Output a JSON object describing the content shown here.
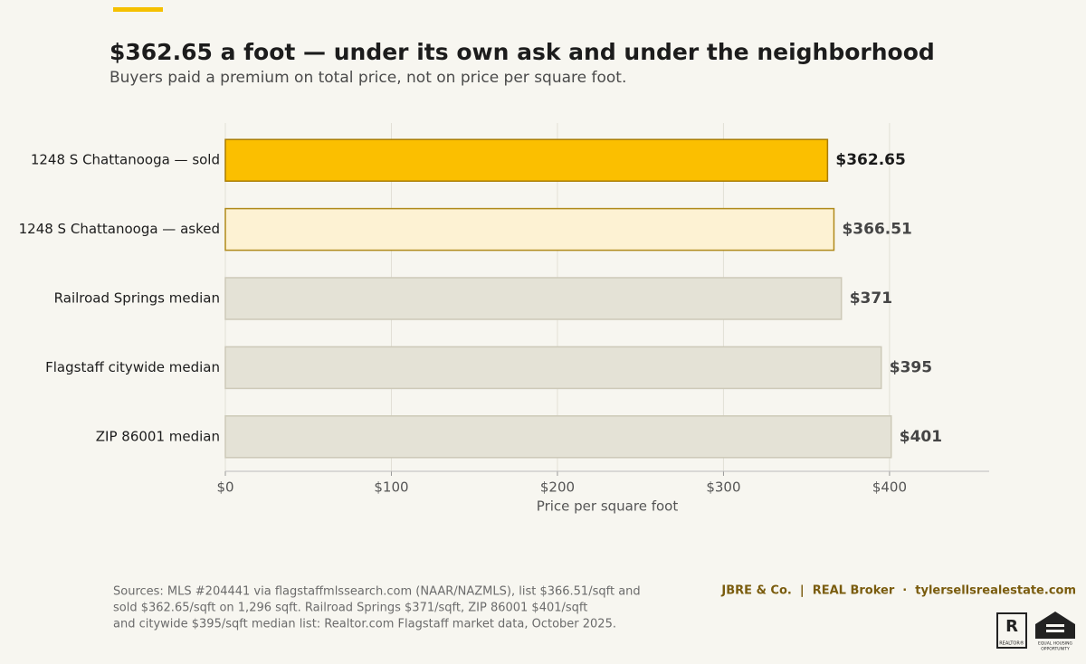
{
  "chart_data": {
    "type": "barh",
    "title": "$362.65 a foot — under its own ask and under the neighborhood",
    "subtitle": "Buyers paid a premium on total price, not on price per square foot.",
    "categories": [
      "1248 S Chattanooga — sold",
      "1248 S Chattanooga — asked",
      "Railroad Springs median",
      "Flagstaff citywide median",
      "ZIP 86001 median"
    ],
    "values": [
      362.65,
      366.51,
      371,
      395,
      401
    ],
    "value_labels": [
      "$362.65",
      "$366.51",
      "$371",
      "$395",
      "$401"
    ],
    "colors": [
      "#fbbf00",
      "#fdf2d3",
      "#e4e2d6",
      "#e4e2d6",
      "#e4e2d6"
    ],
    "edge_colors": [
      "#a97c00",
      "#b08a1a",
      "#cdc9b8",
      "#cdc9b8",
      "#cdc9b8"
    ],
    "xlabel": "Price per square foot",
    "xlim": [
      0,
      460
    ],
    "xticks": [
      {
        "value": 0,
        "label": "$0"
      },
      {
        "value": 100,
        "label": "$100"
      },
      {
        "value": 200,
        "label": "$200"
      },
      {
        "value": 300,
        "label": "$300"
      },
      {
        "value": 400,
        "label": "$400"
      }
    ],
    "grid": true,
    "sources": [
      "Sources: MLS #204441 via flagstaffmlssearch.com (NAAR/NAZMLS), list $366.51/sqft and",
      "sold $362.65/sqft on 1,296 sqft. Railroad Springs $371/sqft, ZIP 86001 $401/sqft",
      "and citywide $395/sqft median list: Realtor.com Flagstaff market data, October 2025."
    ],
    "brand": "JBRE & Co.  |  REAL Broker  ·  tylersellsrealestate.com",
    "logos": [
      "REALTOR®",
      "EQUAL HOUSING",
      "OPPORTUNITY"
    ]
  }
}
